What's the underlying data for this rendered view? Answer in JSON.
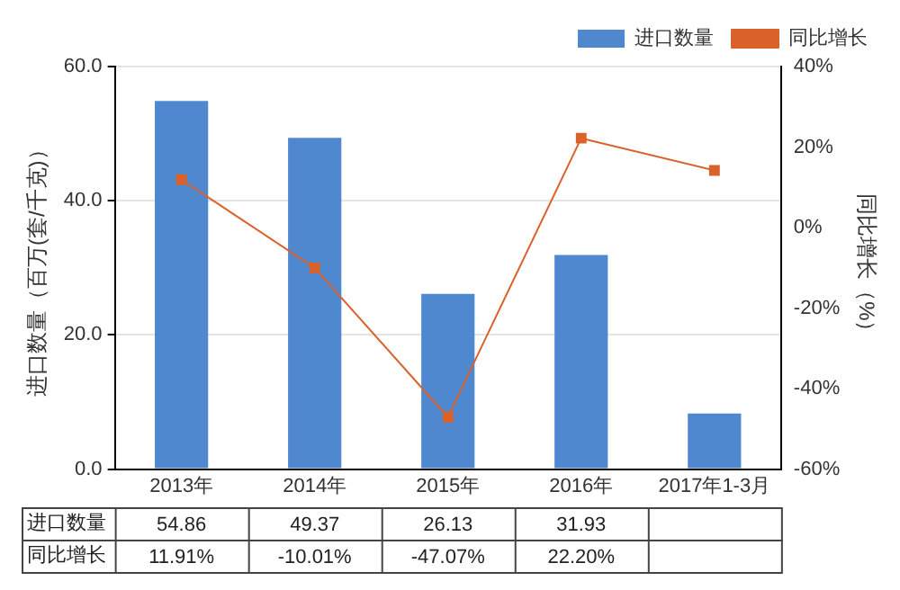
{
  "chart_data": {
    "type": "bar",
    "categories": [
      "2013年",
      "2014年",
      "2015年",
      "2016年",
      "2017年1-3月"
    ],
    "series": [
      {
        "name": "进口数量",
        "color": "#5088d0",
        "values": [
          54.86,
          49.37,
          26.13,
          31.93,
          8.3
        ],
        "value_labels": [
          "54.86",
          "49.37",
          "26.13",
          "31.93",
          null
        ]
      },
      {
        "name": "同比增长",
        "type": "line",
        "axis": "y2",
        "color": "#d9622b",
        "values": [
          11.91,
          -10.01,
          -47.07,
          22.2,
          14.2
        ],
        "value_labels": [
          "11.91%",
          "-10.01%",
          "-47.07%",
          "22.20%",
          null
        ]
      }
    ],
    "ylabel": "进口数量（百万(套/千克)）",
    "y2label": "同比增长（%）",
    "ylim": [
      0,
      60
    ],
    "yticks": [
      {
        "value": 0,
        "label": "0.0"
      },
      {
        "value": 20,
        "label": "20.0"
      },
      {
        "value": 40,
        "label": "40.0"
      },
      {
        "value": 60,
        "label": "60.0"
      }
    ],
    "y2lim": [
      -60,
      40
    ],
    "y2ticks": [
      {
        "value": -60,
        "label": "-60%"
      },
      {
        "value": -40,
        "label": "-40%"
      },
      {
        "value": -20,
        "label": "-20%"
      },
      {
        "value": 0,
        "label": "0%"
      },
      {
        "value": 20,
        "label": "20%"
      },
      {
        "value": 40,
        "label": "40%"
      }
    ],
    "grid": "y",
    "legend": "top right",
    "marker": "square",
    "line_style": "solid"
  }
}
